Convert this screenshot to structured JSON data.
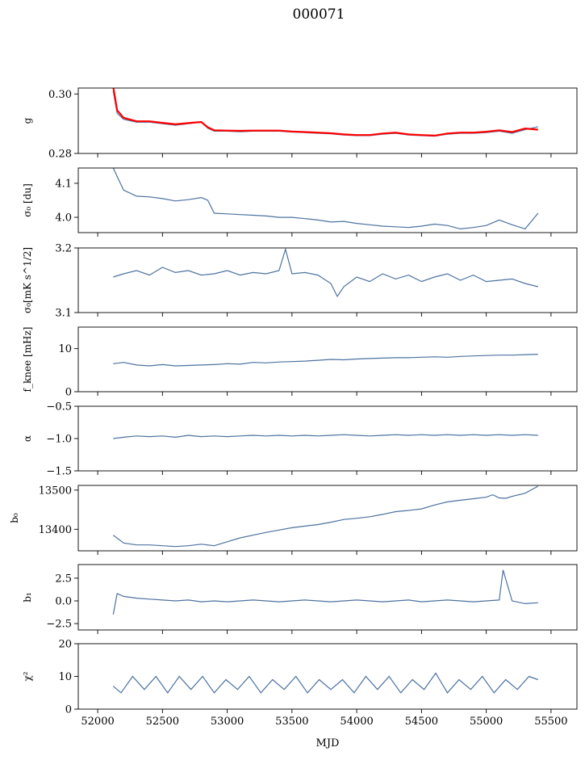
{
  "figure": {
    "title": "000071",
    "xlabel": "MJD"
  },
  "style": {
    "series_color": "#4c72a0",
    "fit_color": "#ff0000"
  },
  "chart_data": [
    {
      "type": "line",
      "id": "g",
      "ylabel": "g",
      "xlim": [
        51850,
        55700
      ],
      "ylim": [
        0.28,
        0.302
      ],
      "yticks": [
        0.28,
        0.3
      ],
      "ytick_labels": [
        "0.28",
        "0.30"
      ],
      "xticks": [
        52000,
        52500,
        53000,
        53500,
        54000,
        54500,
        55000,
        55500
      ],
      "series": [
        {
          "name": "",
          "color": "#4c72a0",
          "x": [
            52120,
            52150,
            52200,
            52300,
            52400,
            52500,
            52600,
            52700,
            52800,
            52850,
            52900,
            53000,
            53100,
            53200,
            53300,
            53400,
            53500,
            53600,
            53700,
            53800,
            53900,
            54000,
            54100,
            54200,
            54300,
            54400,
            54500,
            54600,
            54700,
            54800,
            54900,
            55000,
            55100,
            55200,
            55300,
            55400
          ],
          "y": [
            0.301,
            0.2935,
            0.2915,
            0.2905,
            0.2905,
            0.29,
            0.2895,
            0.29,
            0.2905,
            0.2885,
            0.2875,
            0.2875,
            0.2873,
            0.2875,
            0.2875,
            0.2875,
            0.2872,
            0.287,
            0.2868,
            0.2866,
            0.2862,
            0.286,
            0.286,
            0.2865,
            0.2868,
            0.2862,
            0.286,
            0.2858,
            0.2865,
            0.2868,
            0.2868,
            0.287,
            0.2875,
            0.2868,
            0.288,
            0.289
          ]
        },
        {
          "name": "",
          "color": "#ff0000",
          "x": [
            52120,
            52150,
            52200,
            52300,
            52400,
            52500,
            52600,
            52700,
            52800,
            52850,
            52900,
            53000,
            53100,
            53200,
            53300,
            53400,
            53500,
            53600,
            53700,
            53800,
            53900,
            54000,
            54100,
            54200,
            54300,
            54400,
            54500,
            54600,
            54700,
            54800,
            54900,
            55000,
            55100,
            55200,
            55300,
            55400
          ],
          "y": [
            0.3025,
            0.2945,
            0.292,
            0.2908,
            0.2908,
            0.2903,
            0.2898,
            0.2902,
            0.2906,
            0.2888,
            0.2878,
            0.2877,
            0.2876,
            0.2877,
            0.2877,
            0.2877,
            0.2874,
            0.2872,
            0.287,
            0.2868,
            0.2864,
            0.2862,
            0.2862,
            0.2867,
            0.287,
            0.2864,
            0.2862,
            0.286,
            0.2867,
            0.287,
            0.287,
            0.2873,
            0.2878,
            0.2872,
            0.2884,
            0.288
          ]
        }
      ]
    },
    {
      "type": "line",
      "id": "sigma0_du",
      "ylabel": "σ₀ [du]",
      "xlim": [
        51850,
        55700
      ],
      "ylim": [
        3.955,
        4.145
      ],
      "yticks": [
        4.0,
        4.1
      ],
      "ytick_labels": [
        "4.0",
        "4.1"
      ],
      "xticks": [
        52000,
        52500,
        53000,
        53500,
        54000,
        54500,
        55000,
        55500
      ],
      "series": [
        {
          "name": "",
          "color": "#4c72a0",
          "x": [
            52120,
            52150,
            52200,
            52300,
            52400,
            52500,
            52600,
            52700,
            52800,
            52850,
            52900,
            53000,
            53100,
            53200,
            53300,
            53400,
            53500,
            53600,
            53700,
            53800,
            53900,
            54000,
            54100,
            54200,
            54300,
            54400,
            54500,
            54600,
            54700,
            54800,
            54900,
            55000,
            55100,
            55200,
            55300,
            55400
          ],
          "y": [
            4.145,
            4.12,
            4.08,
            4.062,
            4.06,
            4.055,
            4.048,
            4.052,
            4.058,
            4.05,
            4.012,
            4.01,
            4.008,
            4.006,
            4.004,
            4.0,
            4.0,
            3.996,
            3.992,
            3.986,
            3.988,
            3.982,
            3.978,
            3.974,
            3.972,
            3.97,
            3.974,
            3.98,
            3.976,
            3.966,
            3.97,
            3.976,
            3.992,
            3.978,
            3.966,
            4.012
          ]
        }
      ]
    },
    {
      "type": "line",
      "id": "sigma0_mks",
      "ylabel": "σ₀[mK s^1/2]",
      "xlim": [
        51850,
        55700
      ],
      "ylim": [
        3.1,
        3.2
      ],
      "yticks": [
        3.1,
        3.2
      ],
      "ytick_labels": [
        "3.1",
        "3.2"
      ],
      "xticks": [
        52000,
        52500,
        53000,
        53500,
        54000,
        54500,
        55000,
        55500
      ],
      "series": [
        {
          "name": "",
          "color": "#4c72a0",
          "x": [
            52120,
            52200,
            52300,
            52400,
            52500,
            52600,
            52700,
            52800,
            52900,
            53000,
            53100,
            53200,
            53300,
            53400,
            53450,
            53500,
            53600,
            53700,
            53800,
            53850,
            53900,
            54000,
            54100,
            54200,
            54300,
            54400,
            54500,
            54600,
            54700,
            54800,
            54900,
            55000,
            55100,
            55200,
            55300,
            55400
          ],
          "y": [
            3.155,
            3.16,
            3.165,
            3.158,
            3.17,
            3.162,
            3.165,
            3.158,
            3.16,
            3.165,
            3.158,
            3.162,
            3.16,
            3.165,
            3.198,
            3.16,
            3.162,
            3.158,
            3.145,
            3.125,
            3.14,
            3.155,
            3.148,
            3.16,
            3.152,
            3.158,
            3.148,
            3.155,
            3.16,
            3.15,
            3.158,
            3.148,
            3.15,
            3.152,
            3.145,
            3.14
          ]
        }
      ]
    },
    {
      "type": "line",
      "id": "fknee",
      "ylabel": "f_knee [mHz]",
      "xlim": [
        51850,
        55700
      ],
      "ylim": [
        0,
        15
      ],
      "yticks": [
        0,
        10
      ],
      "ytick_labels": [
        "0",
        "10"
      ],
      "xticks": [
        52000,
        52500,
        53000,
        53500,
        54000,
        54500,
        55000,
        55500
      ],
      "series": [
        {
          "name": "",
          "color": "#4c72a0",
          "x": [
            52120,
            52200,
            52300,
            52400,
            52500,
            52600,
            52700,
            52800,
            52900,
            53000,
            53100,
            53200,
            53300,
            53400,
            53500,
            53600,
            53700,
            53800,
            53900,
            54000,
            54100,
            54200,
            54300,
            54400,
            54500,
            54600,
            54700,
            54800,
            54900,
            55000,
            55100,
            55200,
            55300,
            55400
          ],
          "y": [
            6.5,
            6.8,
            6.2,
            6.0,
            6.3,
            6.0,
            6.1,
            6.2,
            6.3,
            6.5,
            6.4,
            6.8,
            6.7,
            6.9,
            7.0,
            7.1,
            7.3,
            7.5,
            7.4,
            7.6,
            7.7,
            7.8,
            7.9,
            7.9,
            8.0,
            8.1,
            8.0,
            8.2,
            8.3,
            8.4,
            8.5,
            8.5,
            8.6,
            8.7
          ]
        }
      ]
    },
    {
      "type": "line",
      "id": "alpha",
      "ylabel": "α",
      "xlim": [
        51850,
        55700
      ],
      "ylim": [
        -1.5,
        -0.5
      ],
      "yticks": [
        -1.5,
        -1.0,
        -0.5
      ],
      "ytick_labels": [
        "−1.5",
        "−1.0",
        "−0.5"
      ],
      "xticks": [
        52000,
        52500,
        53000,
        53500,
        54000,
        54500,
        55000,
        55500
      ],
      "series": [
        {
          "name": "",
          "color": "#4c72a0",
          "x": [
            52120,
            52200,
            52300,
            52400,
            52500,
            52600,
            52700,
            52800,
            52900,
            53000,
            53100,
            53200,
            53300,
            53400,
            53500,
            53600,
            53700,
            53800,
            53900,
            54000,
            54100,
            54200,
            54300,
            54400,
            54500,
            54600,
            54700,
            54800,
            54900,
            55000,
            55100,
            55200,
            55300,
            55400
          ],
          "y": [
            -1.0,
            -0.98,
            -0.96,
            -0.97,
            -0.96,
            -0.98,
            -0.95,
            -0.97,
            -0.96,
            -0.97,
            -0.96,
            -0.95,
            -0.96,
            -0.95,
            -0.96,
            -0.95,
            -0.96,
            -0.95,
            -0.94,
            -0.95,
            -0.96,
            -0.95,
            -0.94,
            -0.95,
            -0.94,
            -0.95,
            -0.94,
            -0.95,
            -0.94,
            -0.95,
            -0.94,
            -0.95,
            -0.94,
            -0.95
          ]
        }
      ]
    },
    {
      "type": "line",
      "id": "b0",
      "ylabel": "b₀",
      "xlim": [
        51850,
        55700
      ],
      "ylim": [
        13345,
        13512
      ],
      "yticks": [
        13400,
        13500
      ],
      "ytick_labels": [
        "13400",
        "13500"
      ],
      "xticks": [
        52000,
        52500,
        53000,
        53500,
        54000,
        54500,
        55000,
        55500
      ],
      "series": [
        {
          "name": "",
          "color": "#4c72a0",
          "x": [
            52120,
            52200,
            52300,
            52400,
            52500,
            52600,
            52700,
            52800,
            52900,
            53000,
            53100,
            53200,
            53300,
            53400,
            53500,
            53600,
            53700,
            53800,
            53900,
            54000,
            54100,
            54200,
            54300,
            54400,
            54500,
            54600,
            54700,
            54800,
            54900,
            55000,
            55050,
            55100,
            55150,
            55200,
            55300,
            55400
          ],
          "y": [
            13385,
            13365,
            13360,
            13360,
            13358,
            13356,
            13358,
            13362,
            13358,
            13368,
            13378,
            13385,
            13392,
            13398,
            13404,
            13408,
            13412,
            13418,
            13425,
            13428,
            13432,
            13438,
            13445,
            13448,
            13452,
            13462,
            13470,
            13474,
            13478,
            13482,
            13488,
            13480,
            13479,
            13484,
            13492,
            13510
          ]
        }
      ]
    },
    {
      "type": "line",
      "id": "b1",
      "ylabel": "b₁",
      "xlim": [
        51850,
        55700
      ],
      "ylim": [
        -3.2,
        4.0
      ],
      "yticks": [
        -2.5,
        0.0,
        2.5
      ],
      "ytick_labels": [
        "−2.5",
        "0.0",
        "2.5"
      ],
      "xticks": [
        52000,
        52500,
        53000,
        53500,
        54000,
        54500,
        55000,
        55500
      ],
      "series": [
        {
          "name": "",
          "color": "#4c72a0",
          "x": [
            52120,
            52150,
            52200,
            52300,
            52400,
            52500,
            52600,
            52700,
            52800,
            52900,
            53000,
            53100,
            53200,
            53300,
            53400,
            53500,
            53600,
            53700,
            53800,
            53900,
            54000,
            54100,
            54200,
            54300,
            54400,
            54450,
            54500,
            54600,
            54700,
            54800,
            54900,
            55000,
            55100,
            55130,
            55200,
            55300,
            55400
          ],
          "y": [
            -1.5,
            0.8,
            0.5,
            0.3,
            0.2,
            0.1,
            0.0,
            0.1,
            -0.1,
            0.0,
            -0.1,
            0.0,
            0.1,
            0.0,
            -0.1,
            0.0,
            0.1,
            0.0,
            -0.1,
            0.0,
            0.1,
            0.0,
            -0.1,
            0.0,
            0.1,
            0.0,
            -0.1,
            0.0,
            0.1,
            0.0,
            -0.1,
            0.0,
            0.1,
            3.4,
            0.0,
            -0.3,
            -0.2
          ]
        }
      ]
    },
    {
      "type": "line",
      "id": "chi2",
      "ylabel": "χ²",
      "xlim": [
        51850,
        55700
      ],
      "ylim": [
        0,
        20
      ],
      "yticks": [
        0,
        10,
        20
      ],
      "ytick_labels": [
        "0",
        "10",
        "20"
      ],
      "xticks": [
        52000,
        52500,
        53000,
        53500,
        54000,
        54500,
        55000,
        55500
      ],
      "xtick_labels": [
        "52000",
        "52500",
        "53000",
        "53500",
        "54000",
        "54500",
        "55000",
        "55500"
      ],
      "series": [
        {
          "name": "",
          "color": "#4c72a0",
          "x": [
            52120,
            52180,
            52270,
            52360,
            52450,
            52540,
            52630,
            52720,
            52810,
            52900,
            52990,
            53080,
            53170,
            53260,
            53350,
            53440,
            53530,
            53620,
            53710,
            53800,
            53890,
            53980,
            54070,
            54160,
            54250,
            54340,
            54430,
            54520,
            54610,
            54700,
            54790,
            54880,
            54970,
            55060,
            55150,
            55240,
            55330,
            55400
          ],
          "y": [
            7,
            5,
            10,
            6,
            10,
            5,
            10,
            6,
            10,
            5,
            9,
            6,
            10,
            5,
            9,
            6,
            10,
            5,
            9,
            6,
            9,
            5,
            10,
            6,
            10,
            5,
            9,
            6,
            11,
            5,
            9,
            6,
            10,
            5,
            9,
            6,
            10,
            9
          ]
        }
      ]
    }
  ]
}
